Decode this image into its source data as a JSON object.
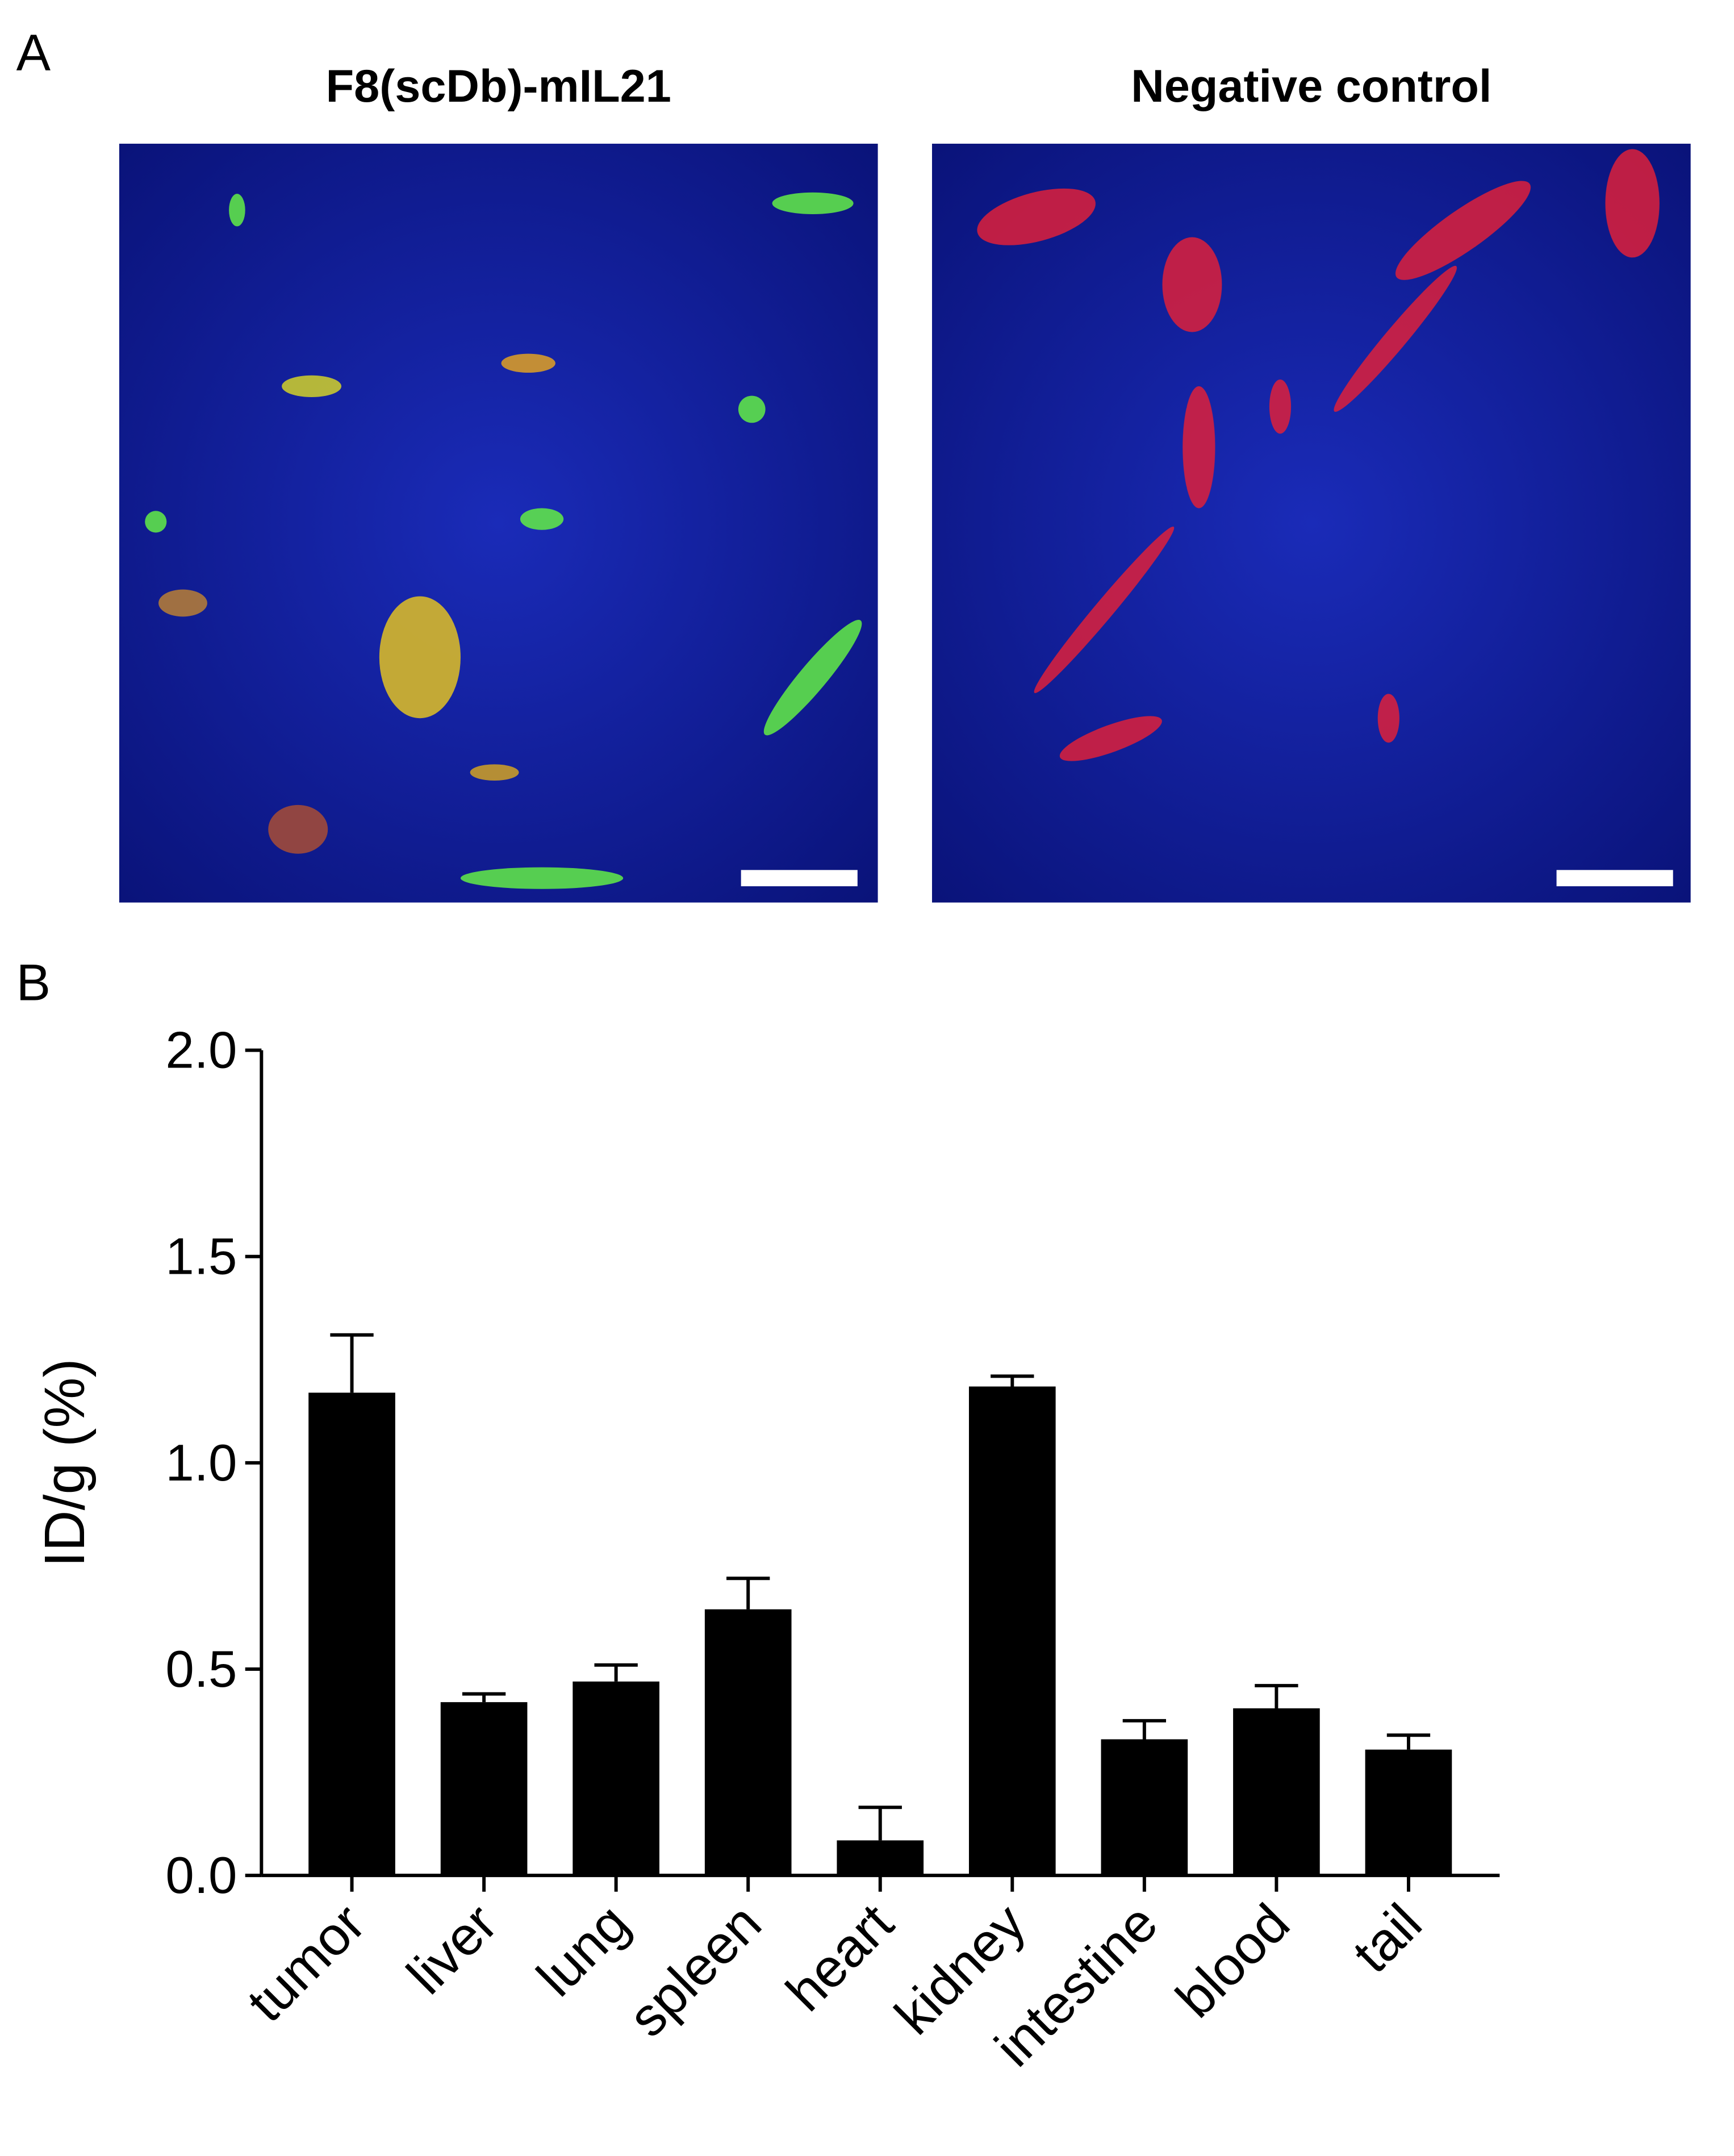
{
  "panel_labels": [
    "A",
    "B"
  ],
  "image_titles": [
    "F8(scDb)-mIL21",
    "Negative control"
  ],
  "chart_data": {
    "type": "bar",
    "ylabel": "ID/g (%)",
    "categories": [
      "tumor",
      "liver",
      "lung",
      "spleen",
      "heart",
      "kidney",
      "intestine",
      "blood",
      "tail"
    ],
    "values": [
      1.17,
      0.42,
      0.47,
      0.645,
      0.085,
      1.185,
      0.33,
      0.405,
      0.305
    ],
    "errors": [
      0.14,
      0.02,
      0.04,
      0.075,
      0.08,
      0.025,
      0.045,
      0.055,
      0.035
    ],
    "color": "#000000",
    "ylim": [
      0,
      2
    ],
    "yticks": [
      {
        "value": 0,
        "label": "0.0"
      },
      {
        "value": 0.5,
        "label": "0.5"
      },
      {
        "value": 1,
        "label": "1.0"
      },
      {
        "value": 1.5,
        "label": "1.5"
      },
      {
        "value": 2,
        "label": "2.0"
      }
    ]
  }
}
